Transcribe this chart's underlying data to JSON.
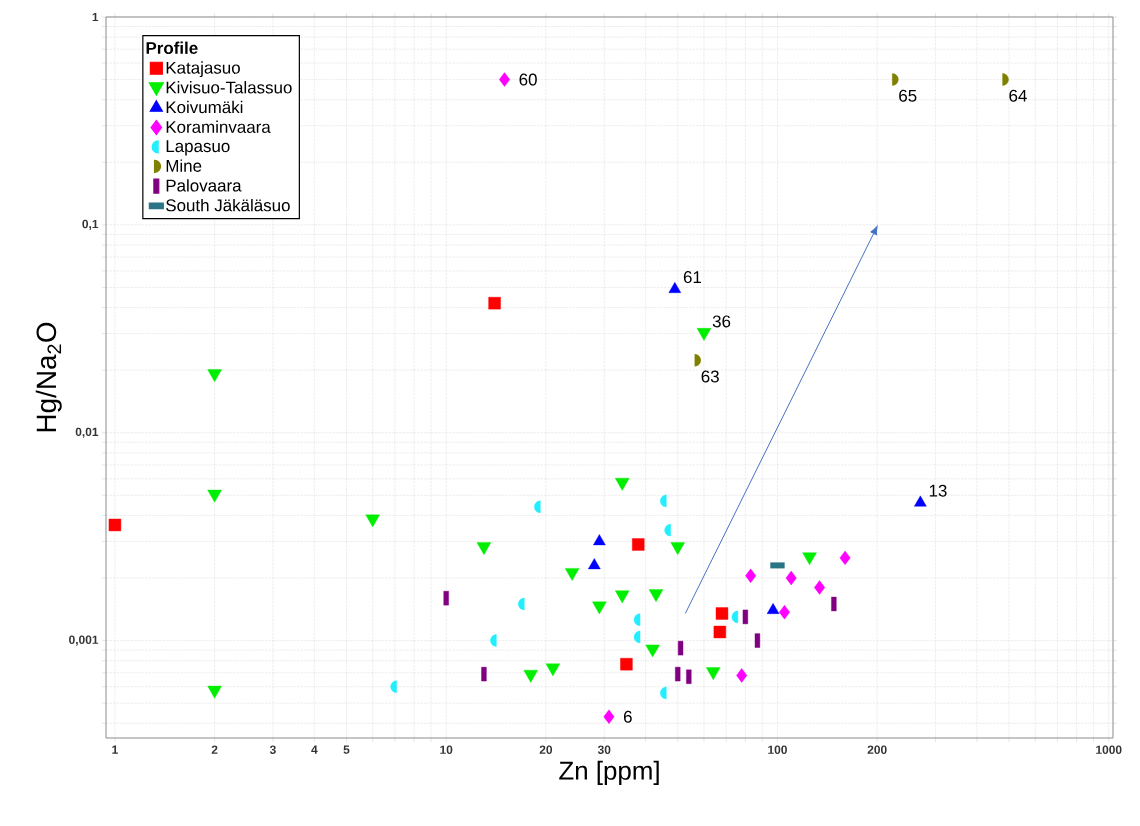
{
  "chart_data": {
    "type": "scatter",
    "xlabel": "Zn [ppm]",
    "ylabel": "Hg/Na$_{2}$O",
    "legend_title": "Profile",
    "log": "xy",
    "grid": true,
    "legend": "top left",
    "xlim": [
      0.94,
      1030
    ],
    "ylim": [
      0.00034,
      1
    ],
    "xticks": [
      1,
      2,
      3,
      4,
      5,
      {
        "value": 6,
        "label": null
      },
      {
        "value": 7,
        "label": null
      },
      {
        "value": 8,
        "label": null
      },
      {
        "value": 9,
        "label": null
      },
      10,
      20,
      30,
      {
        "value": 40,
        "label": null
      },
      {
        "value": 50,
        "label": null
      },
      {
        "value": 60,
        "label": null
      },
      {
        "value": 70,
        "label": null
      },
      {
        "value": 80,
        "label": null
      },
      {
        "value": 90,
        "label": null
      },
      100,
      200,
      {
        "value": 300,
        "label": null
      },
      {
        "value": 400,
        "label": null
      },
      {
        "value": 500,
        "label": null
      },
      {
        "value": 600,
        "label": null
      },
      {
        "value": 700,
        "label": null
      },
      {
        "value": 800,
        "label": null
      },
      {
        "value": 900,
        "label": null
      },
      1000
    ],
    "yticks": [
      {
        "value": 0.0004,
        "label": null
      },
      {
        "value": 0.0005,
        "label": null
      },
      {
        "value": 0.0006,
        "label": null
      },
      {
        "value": 0.0007,
        "label": null
      },
      {
        "value": 0.0008,
        "label": null
      },
      {
        "value": 0.0009,
        "label": null
      },
      {
        "value": 0.001,
        "label": "0,001"
      },
      {
        "value": 0.002,
        "label": null
      },
      {
        "value": 0.003,
        "label": null
      },
      {
        "value": 0.004,
        "label": null
      },
      {
        "value": 0.005,
        "label": null
      },
      {
        "value": 0.006,
        "label": null
      },
      {
        "value": 0.007,
        "label": null
      },
      {
        "value": 0.008,
        "label": null
      },
      {
        "value": 0.009,
        "label": null
      },
      {
        "value": 0.01,
        "label": "0,01"
      },
      {
        "value": 0.02,
        "label": null
      },
      {
        "value": 0.03,
        "label": null
      },
      {
        "value": 0.04,
        "label": null
      },
      {
        "value": 0.05,
        "label": null
      },
      {
        "value": 0.06,
        "label": null
      },
      {
        "value": 0.07,
        "label": null
      },
      {
        "value": 0.08,
        "label": null
      },
      {
        "value": 0.09,
        "label": null
      },
      {
        "value": 0.1,
        "label": "0,1"
      },
      {
        "value": 0.2,
        "label": null
      },
      {
        "value": 0.3,
        "label": null
      },
      {
        "value": 0.4,
        "label": null
      },
      {
        "value": 0.5,
        "label": null
      },
      {
        "value": 0.6,
        "label": null
      },
      {
        "value": 0.7,
        "label": null
      },
      {
        "value": 0.8,
        "label": null
      },
      {
        "value": 0.9,
        "label": null
      },
      1
    ],
    "series": [
      {
        "name": "Katajasuo",
        "color": "#ff0000",
        "marker": "square",
        "x": [
          1.0,
          14,
          38,
          35,
          68,
          67
        ],
        "values": [
          0.0036,
          0.042,
          0.0029,
          0.00077,
          0.00135,
          0.0011
        ]
      },
      {
        "name": "Kivisuo-Talassuo",
        "color": "#00ee00",
        "marker": "triangle",
        "x": [
          2,
          2,
          6,
          2,
          13,
          24,
          18,
          21,
          29,
          34,
          34,
          43,
          50,
          42,
          64,
          125,
          60
        ],
        "values": [
          0.019,
          0.005,
          0.0038,
          0.00057,
          0.0028,
          0.0021,
          0.00068,
          0.00073,
          0.00145,
          0.00164,
          0.0057,
          0.00166,
          0.0028,
          0.0009,
          0.0007,
          0.0025,
          0.03
        ]
      },
      {
        "name": "Koivumäki",
        "color": "#0000ff",
        "marker": "triangle",
        "x": [
          29,
          28,
          97,
          270,
          49
        ],
        "values": [
          0.003,
          0.0023,
          0.0014,
          0.0046,
          0.049
        ]
      },
      {
        "name": "Koraminvaara",
        "color": "#ff00ff",
        "marker": "diamond",
        "x": [
          15,
          31,
          83,
          78,
          110,
          134,
          105,
          160
        ],
        "values": [
          0.5,
          0.00043,
          0.00205,
          0.00068,
          0.002,
          0.0018,
          0.00137,
          0.0025
        ]
      },
      {
        "name": "Lapasuo",
        "color": "#22eeff",
        "marker": "circle",
        "x": [
          7,
          19,
          17,
          14,
          38,
          38,
          45.6,
          47,
          45.6,
          75
        ],
        "values": [
          0.0006,
          0.0044,
          0.0015,
          0.001,
          0.00126,
          0.00104,
          0.0047,
          0.0034,
          0.00056,
          0.0013
        ]
      },
      {
        "name": "Mine",
        "color": "#808000",
        "marker": "circle",
        "x": [
          225,
          484,
          57
        ],
        "values": [
          0.5,
          0.5,
          0.0223
        ]
      },
      {
        "name": "Palovaara",
        "color": "#800080",
        "marker": "square",
        "x": [
          10,
          13,
          51,
          50,
          54,
          80,
          87,
          148
        ],
        "values": [
          0.0016,
          0.00069,
          0.00092,
          0.00069,
          0.00067,
          0.0013,
          0.001,
          0.0015
        ]
      },
      {
        "name": "South Jäkäläsuo",
        "color": "#2a7585",
        "marker": "square",
        "x": [
          100
        ],
        "values": [
          0.0023
        ]
      }
    ],
    "annotations": [
      {
        "text": "60",
        "x": 15,
        "y": 0.5
      },
      {
        "text": "61",
        "x": 49,
        "y": 0.049
      },
      {
        "text": "36",
        "x": 60,
        "y": 0.03
      },
      {
        "text": "63",
        "x": 57,
        "y": 0.0223
      },
      {
        "text": "65",
        "x": 225,
        "y": 0.5
      },
      {
        "text": "64",
        "x": 484,
        "y": 0.5
      },
      {
        "text": "13",
        "x": 270,
        "y": 0.0046
      },
      {
        "text": "6",
        "x": 31,
        "y": 0.00043
      }
    ]
  }
}
